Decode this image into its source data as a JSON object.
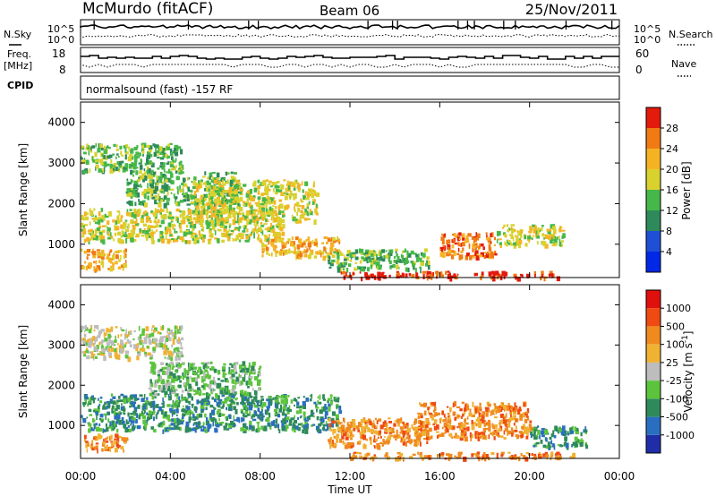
{
  "header": {
    "station": "McMurdo (fitACF)",
    "beam": "Beam 06",
    "date": "25/Nov/2011"
  },
  "status_panels": {
    "nsky_label": "N.Sky",
    "nsearch_label": "N.Search",
    "freq_label_line1": "Freq.",
    "freq_label_line2": "[MHz]",
    "nave_label": "Nave",
    "cpid_label": "CPID",
    "cpid_value": "normalsound (fast) -157 RF",
    "noise_ticks": [
      "10^5",
      "10^0"
    ],
    "freq_ticks": [
      "18",
      "8"
    ],
    "nave_ticks": [
      "60",
      "0"
    ]
  },
  "chart_data": [
    {
      "type": "heatmap",
      "name": "power",
      "xlabel": "",
      "ylabel": "Slant Range [km]",
      "ylim": [
        180,
        4500
      ],
      "xlim": [
        "00:00",
        "24:00"
      ],
      "y_ticks": [
        "1000",
        "2000",
        "3000",
        "4000"
      ],
      "colorbar": {
        "label": "Power [dB]",
        "ticks": [
          "4",
          "8",
          "12",
          "16",
          "20",
          "24",
          "28"
        ],
        "colors": [
          "#0028e6",
          "#1e4fd6",
          "#2e8a5a",
          "#46b849",
          "#d9d12e",
          "#f5b324",
          "#f07a14",
          "#e31a0c"
        ]
      },
      "echo_regions": [
        {
          "t0": 0.0,
          "t1": 4.5,
          "r0": 2800,
          "r1": 3500,
          "level": 3
        },
        {
          "t0": 0.0,
          "t1": 2.0,
          "r0": 400,
          "r1": 900,
          "level": 5
        },
        {
          "t0": 0.0,
          "t1": 9.0,
          "r0": 1100,
          "r1": 1900,
          "level": 4
        },
        {
          "t0": 2.0,
          "t1": 7.0,
          "r0": 2000,
          "r1": 2800,
          "level": 3
        },
        {
          "t0": 5.0,
          "t1": 10.5,
          "r0": 1600,
          "r1": 2600,
          "level": 4
        },
        {
          "t0": 8.0,
          "t1": 11.5,
          "r0": 700,
          "r1": 1200,
          "level": 5
        },
        {
          "t0": 11.0,
          "t1": 15.5,
          "r0": 400,
          "r1": 900,
          "level": 3
        },
        {
          "t0": 16.0,
          "t1": 18.5,
          "r0": 700,
          "r1": 1300,
          "level": 6
        },
        {
          "t0": 18.5,
          "t1": 21.5,
          "r0": 1000,
          "r1": 1500,
          "level": 4
        },
        {
          "t0": 11.5,
          "t1": 21.5,
          "r0": 200,
          "r1": 350,
          "level": 7
        }
      ]
    },
    {
      "type": "heatmap",
      "name": "velocity",
      "xlabel": "Time UT",
      "ylabel": "Slant Range [km]",
      "ylim": [
        180,
        4500
      ],
      "xlim": [
        "00:00",
        "24:00"
      ],
      "x_ticks": [
        "00:00",
        "04:00",
        "08:00",
        "12:00",
        "16:00",
        "20:00",
        "00:00"
      ],
      "y_ticks": [
        "1000",
        "2000",
        "3000",
        "4000"
      ],
      "colorbar": {
        "label": "Velocity [m s",
        "label_sup": "-1",
        "label_end": "]",
        "ticks": [
          "1000",
          "500",
          "100",
          "25",
          "-25",
          "-100",
          "-500",
          "-1000"
        ],
        "colors": [
          "#1f2ea8",
          "#2a6fbf",
          "#2e8a5a",
          "#5cc43c",
          "#bdbdbd",
          "#f0b233",
          "#f08a1e",
          "#ef4a12",
          "#e0100c"
        ]
      },
      "echo_regions": [
        {
          "t0": 0.0,
          "t1": 4.5,
          "r0": 2700,
          "r1": 3500,
          "level": 4
        },
        {
          "t0": 0.0,
          "t1": 2.0,
          "r0": 400,
          "r1": 800,
          "level": 6
        },
        {
          "t0": 0.0,
          "t1": 11.5,
          "r0": 900,
          "r1": 1800,
          "level": 2
        },
        {
          "t0": 3.0,
          "t1": 8.0,
          "r0": 1800,
          "r1": 2600,
          "level": 3
        },
        {
          "t0": 11.0,
          "t1": 15.5,
          "r0": 500,
          "r1": 1200,
          "level": 6
        },
        {
          "t0": 15.0,
          "t1": 20.0,
          "r0": 700,
          "r1": 1600,
          "level": 6
        },
        {
          "t0": 20.0,
          "t1": 22.5,
          "r0": 500,
          "r1": 1000,
          "level": 2
        },
        {
          "t0": 12.0,
          "t1": 22.0,
          "r0": 200,
          "r1": 350,
          "level": 6
        }
      ]
    }
  ]
}
